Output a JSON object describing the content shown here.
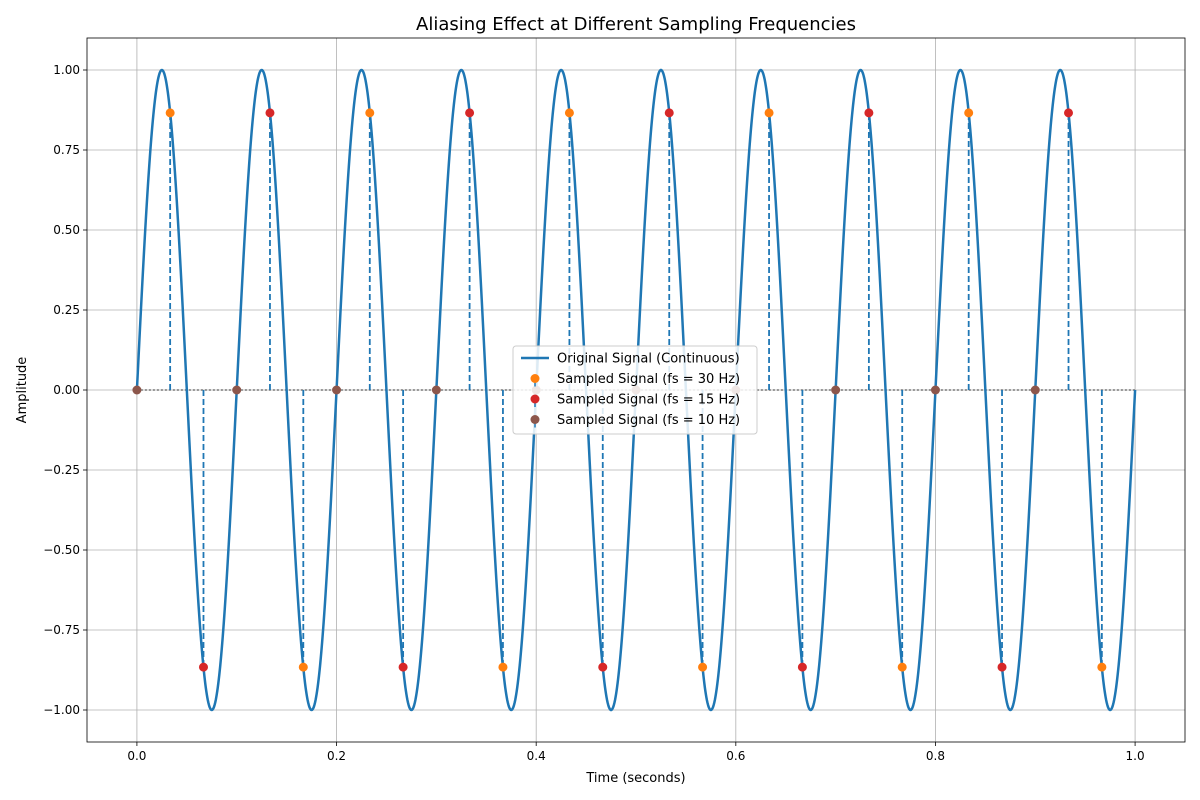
{
  "chart_data": {
    "type": "line",
    "title": "Aliasing Effect at Different Sampling Frequencies",
    "xlabel": "Time (seconds)",
    "ylabel": "Amplitude",
    "xlim": [
      -0.05,
      1.05
    ],
    "ylim": [
      -1.1,
      1.1
    ],
    "xticks": [
      0.0,
      0.2,
      0.4,
      0.6,
      0.8,
      1.0
    ],
    "xtick_labels": [
      "0.0",
      "0.2",
      "0.4",
      "0.6",
      "0.8",
      "1.0"
    ],
    "yticks": [
      -1.0,
      -0.75,
      -0.5,
      -0.25,
      0.0,
      0.25,
      0.5,
      0.75,
      1.0
    ],
    "ytick_labels": [
      "−1.00",
      "−0.75",
      "−0.50",
      "−0.25",
      "0.00",
      "0.25",
      "0.50",
      "0.75",
      "1.00"
    ],
    "grid": true,
    "legend_position": "center",
    "signal_frequency_hz": 10,
    "series": [
      {
        "name": "Original Signal (Continuous)",
        "kind": "line",
        "color": "#1f77b4",
        "x_range": [
          0,
          1
        ]
      },
      {
        "name": "Sampled Signal (fs = 30 Hz)",
        "kind": "stem",
        "color": "#ff7f0e",
        "stem_color": "#1f77b4",
        "x": [
          0.0333,
          0.1667,
          0.2333,
          0.3667,
          0.4333,
          0.5667,
          0.6333,
          0.7667,
          0.8333,
          0.9667
        ],
        "y": [
          0.866,
          -0.866,
          0.866,
          -0.866,
          0.866,
          -0.866,
          0.866,
          -0.866,
          0.866,
          -0.866
        ]
      },
      {
        "name": "Sampled Signal (fs = 15 Hz)",
        "kind": "stem",
        "color": "#d62728",
        "stem_color": "#1f77b4",
        "x": [
          0.0667,
          0.1333,
          0.2667,
          0.3333,
          0.4667,
          0.5333,
          0.6667,
          0.7333,
          0.8667,
          0.9333
        ],
        "y": [
          -0.866,
          0.866,
          -0.866,
          0.866,
          -0.866,
          0.866,
          -0.866,
          0.866,
          -0.866,
          0.866
        ]
      },
      {
        "name": "Sampled Signal (fs = 10 Hz)",
        "kind": "stem",
        "color": "#8c564b",
        "stem_color": "#1f77b4",
        "x": [
          0.0,
          0.1,
          0.2,
          0.3,
          0.4,
          0.5,
          0.6,
          0.7,
          0.8,
          0.9
        ],
        "y": [
          0.0,
          0.0,
          0.0,
          0.0,
          0.0,
          0.0,
          0.0,
          0.0,
          0.0,
          0.0
        ]
      }
    ]
  }
}
